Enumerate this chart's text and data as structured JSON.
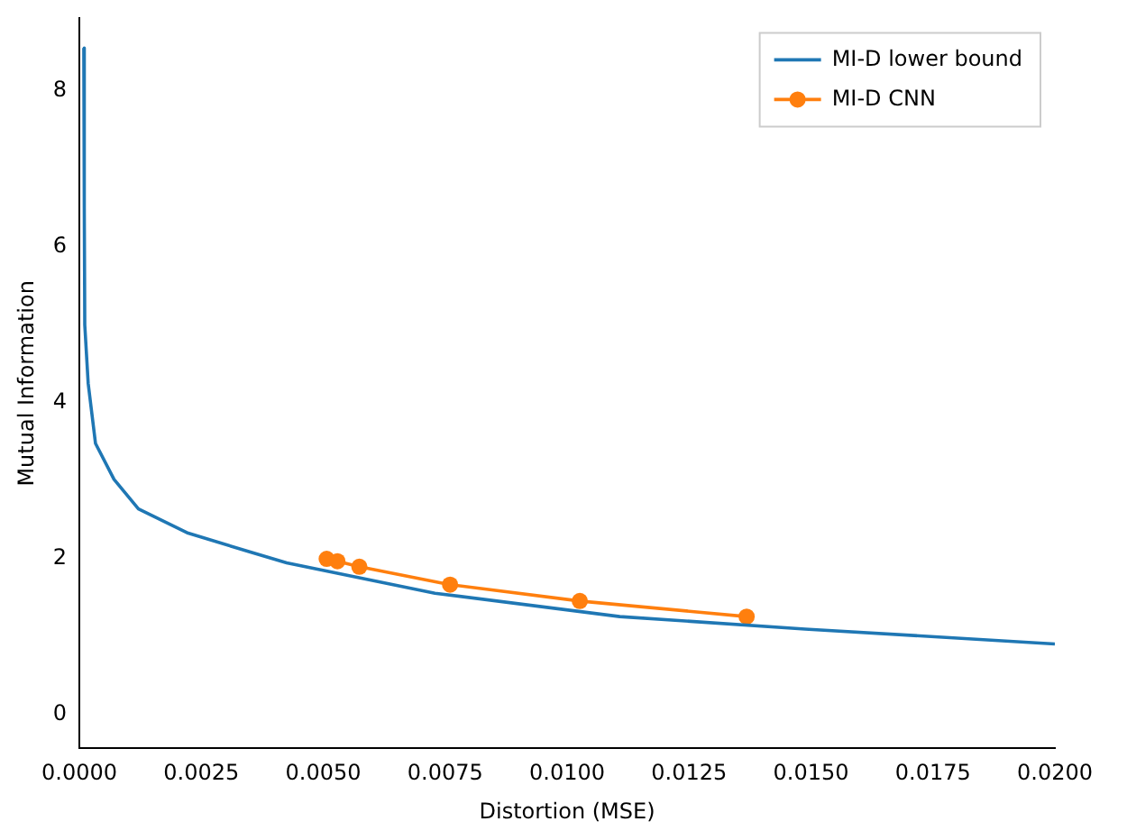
{
  "chart_data": {
    "type": "line",
    "xlabel": "Distortion (MSE)",
    "ylabel": "Mutual Information",
    "xlim": [
      0,
      0.02
    ],
    "ylim": [
      -0.43,
      8.93
    ],
    "xticks": [
      {
        "value": 0,
        "label": "0.0000"
      },
      {
        "value": 0.0025,
        "label": "0.0025"
      },
      {
        "value": 0.005,
        "label": "0.0050"
      },
      {
        "value": 0.0075,
        "label": "0.0075"
      },
      {
        "value": 0.01,
        "label": "0.0100"
      },
      {
        "value": 0.0125,
        "label": "0.0125"
      },
      {
        "value": 0.015,
        "label": "0.0150"
      },
      {
        "value": 0.0175,
        "label": "0.0175"
      },
      {
        "value": 0.02,
        "label": "0.0200"
      }
    ],
    "yticks": [
      0,
      2,
      4,
      6,
      8
    ],
    "legend": "top right",
    "grid": false,
    "series": [
      {
        "name": "MI-D lower bound",
        "color": "#1f77b4",
        "marker": "none",
        "x": [
          9e-05,
          0.0001,
          0.00011,
          0.00018,
          0.00033,
          0.00071,
          0.00121,
          0.00223,
          0.00349,
          0.00425,
          0.00729,
          0.01108,
          0.01488,
          0.02
        ],
        "values": [
          8.55,
          6.5,
          5.0,
          4.25,
          3.48,
          3.02,
          2.64,
          2.33,
          2.09,
          1.95,
          1.56,
          1.26,
          1.1,
          0.91
        ]
      },
      {
        "name": "MI-D CNN",
        "color": "#ff7f0e",
        "marker": "circle",
        "x": [
          0.00507,
          0.00529,
          0.00574,
          0.0076,
          0.01026,
          0.01368
        ],
        "values": [
          2.0,
          1.97,
          1.9,
          1.67,
          1.46,
          1.26
        ]
      }
    ]
  }
}
